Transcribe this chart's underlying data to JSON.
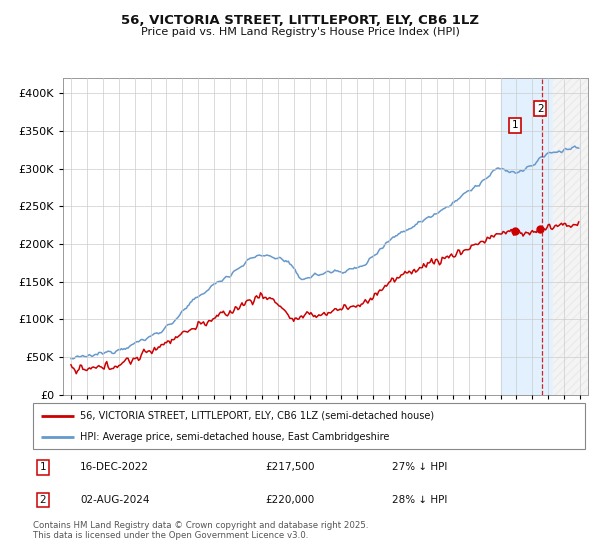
{
  "title": "56, VICTORIA STREET, LITTLEPORT, ELY, CB6 1LZ",
  "subtitle": "Price paid vs. HM Land Registry's House Price Index (HPI)",
  "legend_line1": "56, VICTORIA STREET, LITTLEPORT, ELY, CB6 1LZ (semi-detached house)",
  "legend_line2": "HPI: Average price, semi-detached house, East Cambridgeshire",
  "annotation1_date": "16-DEC-2022",
  "annotation1_price": "£217,500",
  "annotation1_hpi": "27% ↓ HPI",
  "annotation1_year": 2022.958,
  "annotation1_value": 217500,
  "annotation2_date": "02-AUG-2024",
  "annotation2_price": "£220,000",
  "annotation2_hpi": "28% ↓ HPI",
  "annotation2_year": 2024.583,
  "annotation2_value": 220000,
  "footer": "Contains HM Land Registry data © Crown copyright and database right 2025.\nThis data is licensed under the Open Government Licence v3.0.",
  "hpi_color": "#6699cc",
  "price_color": "#cc0000",
  "shade_color": "#ddeeff",
  "dashed_color": "#cc0000",
  "grid_color": "#cccccc",
  "bg_color": "#ffffff",
  "ylim_min": 0,
  "ylim_max": 420000,
  "yticks": [
    0,
    50000,
    100000,
    150000,
    200000,
    250000,
    300000,
    350000,
    400000
  ],
  "xlim_min": 1994.5,
  "xlim_max": 2027.5,
  "shade_x1": 2022.0,
  "shade_x2": 2025.3,
  "hatch_x1": 2025.3,
  "hatch_x2": 2027.5,
  "vline_x": 2024.583
}
